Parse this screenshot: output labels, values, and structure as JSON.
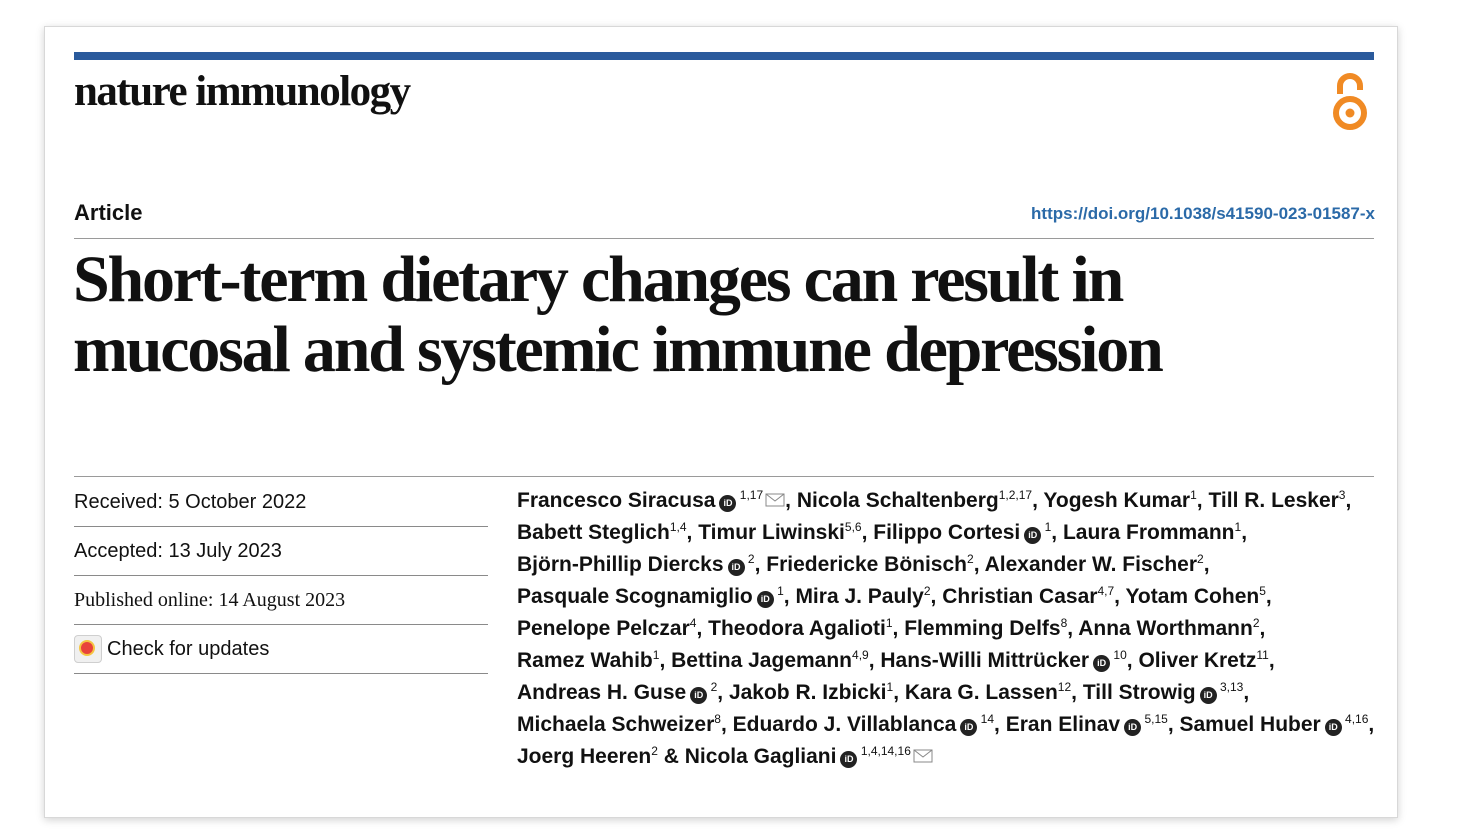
{
  "journal": {
    "name": "nature immunology"
  },
  "article": {
    "type": "Article",
    "doi": "https://doi.org/10.1038/s41590-023-01587-x",
    "title_line1": "Short-term dietary changes can result in",
    "title_line2": "mucosal and systemic immune depression"
  },
  "history": {
    "received": "Received: 5 October 2022",
    "accepted": "Accepted: 13 July 2023",
    "published": "Published online: 14 August 2023",
    "check_updates": "Check for updates"
  },
  "colors": {
    "header_bar": "#2a5a9c",
    "open_access": "#f08a24",
    "doi_link": "#2b6aa8"
  },
  "icons": {
    "open_access": "open-access-icon",
    "orcid": "orcid-icon",
    "email": "email-icon",
    "updates": "check-for-updates-icon"
  },
  "authors": [
    {
      "name": "Francesco Siracusa",
      "sup": "1,17",
      "orcid": true,
      "email": true,
      "lead": "",
      "sep": ","
    },
    {
      "name": "Nicola Schaltenberg",
      "sup": "1,2,17",
      "orcid": false,
      "email": false,
      "lead": "",
      "sep": ","
    },
    {
      "name": "Yogesh Kumar",
      "sup": "1",
      "orcid": false,
      "email": false,
      "lead": "",
      "sep": ","
    },
    {
      "name": "Till R. Lesker",
      "sup": "3",
      "orcid": false,
      "email": false,
      "lead": "",
      "sep": ","
    },
    {
      "name": "Babett Steglich",
      "sup": "1,4",
      "orcid": false,
      "email": false,
      "lead": "",
      "sep": ","
    },
    {
      "name": "Timur Liwinski",
      "sup": "5,6",
      "orcid": false,
      "email": false,
      "lead": "",
      "sep": ","
    },
    {
      "name": "Filippo Cortesi",
      "sup": "1",
      "orcid": true,
      "email": false,
      "lead": "",
      "sep": ","
    },
    {
      "name": "Laura Frommann",
      "sup": "1",
      "orcid": false,
      "email": false,
      "lead": "",
      "sep": ","
    },
    {
      "name": "Björn-Phillip Diercks",
      "sup": "2",
      "orcid": true,
      "email": false,
      "lead": "",
      "sep": ","
    },
    {
      "name": "Friedericke Bönisch",
      "sup": "2",
      "orcid": false,
      "email": false,
      "lead": "",
      "sep": ","
    },
    {
      "name": "Alexander W. Fischer",
      "sup": "2",
      "orcid": false,
      "email": false,
      "lead": "",
      "sep": ","
    },
    {
      "name": "Pasquale Scognamiglio",
      "sup": "1",
      "orcid": true,
      "email": false,
      "lead": "",
      "sep": ","
    },
    {
      "name": "Mira J. Pauly",
      "sup": "2",
      "orcid": false,
      "email": false,
      "lead": "",
      "sep": ","
    },
    {
      "name": "Christian Casar",
      "sup": "4,7",
      "orcid": false,
      "email": false,
      "lead": "",
      "sep": ","
    },
    {
      "name": "Yotam Cohen",
      "sup": "5",
      "orcid": false,
      "email": false,
      "lead": "",
      "sep": ","
    },
    {
      "name": "Penelope Pelczar",
      "sup": "4",
      "orcid": false,
      "email": false,
      "lead": "",
      "sep": ","
    },
    {
      "name": "Theodora Agalioti",
      "sup": "1",
      "orcid": false,
      "email": false,
      "lead": "",
      "sep": ","
    },
    {
      "name": "Flemming Delfs",
      "sup": "8",
      "orcid": false,
      "email": false,
      "lead": "",
      "sep": ","
    },
    {
      "name": "Anna Worthmann",
      "sup": "2",
      "orcid": false,
      "email": false,
      "lead": "",
      "sep": ","
    },
    {
      "name": "Ramez Wahib",
      "sup": "1",
      "orcid": false,
      "email": false,
      "lead": "",
      "sep": ","
    },
    {
      "name": "Bettina Jagemann",
      "sup": "4,9",
      "orcid": false,
      "email": false,
      "lead": "",
      "sep": ","
    },
    {
      "name": "Hans-Willi Mittrücker",
      "sup": "10",
      "orcid": true,
      "email": false,
      "lead": "",
      "sep": ","
    },
    {
      "name": "Oliver Kretz",
      "sup": "11",
      "orcid": false,
      "email": false,
      "lead": "",
      "sep": ","
    },
    {
      "name": "Andreas H. Guse",
      "sup": "2",
      "orcid": true,
      "email": false,
      "lead": "",
      "sep": ","
    },
    {
      "name": "Jakob R. Izbicki",
      "sup": "1",
      "orcid": false,
      "email": false,
      "lead": "",
      "sep": ","
    },
    {
      "name": "Kara G. Lassen",
      "sup": "12",
      "orcid": false,
      "email": false,
      "lead": "",
      "sep": ","
    },
    {
      "name": "Till Strowig",
      "sup": "3,13",
      "orcid": true,
      "email": false,
      "lead": "",
      "sep": ","
    },
    {
      "name": "Michaela Schweizer",
      "sup": "8",
      "orcid": false,
      "email": false,
      "lead": "",
      "sep": ","
    },
    {
      "name": "Eduardo J. Villablanca",
      "sup": "14",
      "orcid": true,
      "email": false,
      "lead": "",
      "sep": ","
    },
    {
      "name": "Eran Elinav",
      "sup": "5,15",
      "orcid": true,
      "email": false,
      "lead": "",
      "sep": ","
    },
    {
      "name": "Samuel Huber",
      "sup": "4,16",
      "orcid": true,
      "email": false,
      "lead": "",
      "sep": ","
    },
    {
      "name": "Joerg Heeren",
      "sup": "2",
      "orcid": false,
      "email": false,
      "lead": "",
      "sep": ""
    },
    {
      "name": "Nicola Gagliani",
      "sup": "1,4,14,16",
      "orcid": true,
      "email": true,
      "lead": "& ",
      "sep": ""
    }
  ]
}
